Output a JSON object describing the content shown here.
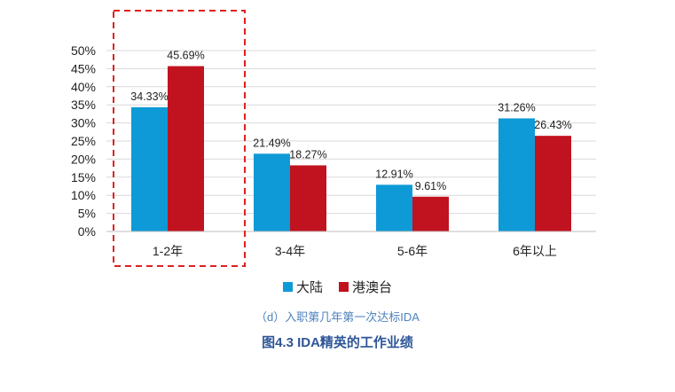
{
  "chart_data": {
    "type": "bar",
    "categories": [
      "1-2年",
      "3-4年",
      "5-6年",
      "6年以上"
    ],
    "series": [
      {
        "name": "大陆",
        "values": [
          34.33,
          21.49,
          12.91,
          31.26
        ],
        "labels": [
          "34.33%",
          "21.49%",
          "12.91%",
          "31.26%"
        ],
        "color": "#0e9ad6"
      },
      {
        "name": "港澳台",
        "values": [
          45.69,
          18.27,
          9.61,
          26.43
        ],
        "labels": [
          "45.69%",
          "18.27%",
          "9.61%",
          "26.43%"
        ],
        "color": "#c1121f"
      }
    ],
    "yticks": [
      "0%",
      "5%",
      "10%",
      "15%",
      "20%",
      "25%",
      "30%",
      "35%",
      "40%",
      "45%",
      "50%"
    ],
    "ylim": [
      0,
      50
    ],
    "grid": true,
    "legend_position": "bottom-center",
    "highlight": {
      "category": "1-2年",
      "style": "dashed",
      "color": "#e02020"
    }
  },
  "subcaption": "（d）入职第几年第一次达标IDA",
  "caption": "图4.3    IDA精英的工作业绩"
}
